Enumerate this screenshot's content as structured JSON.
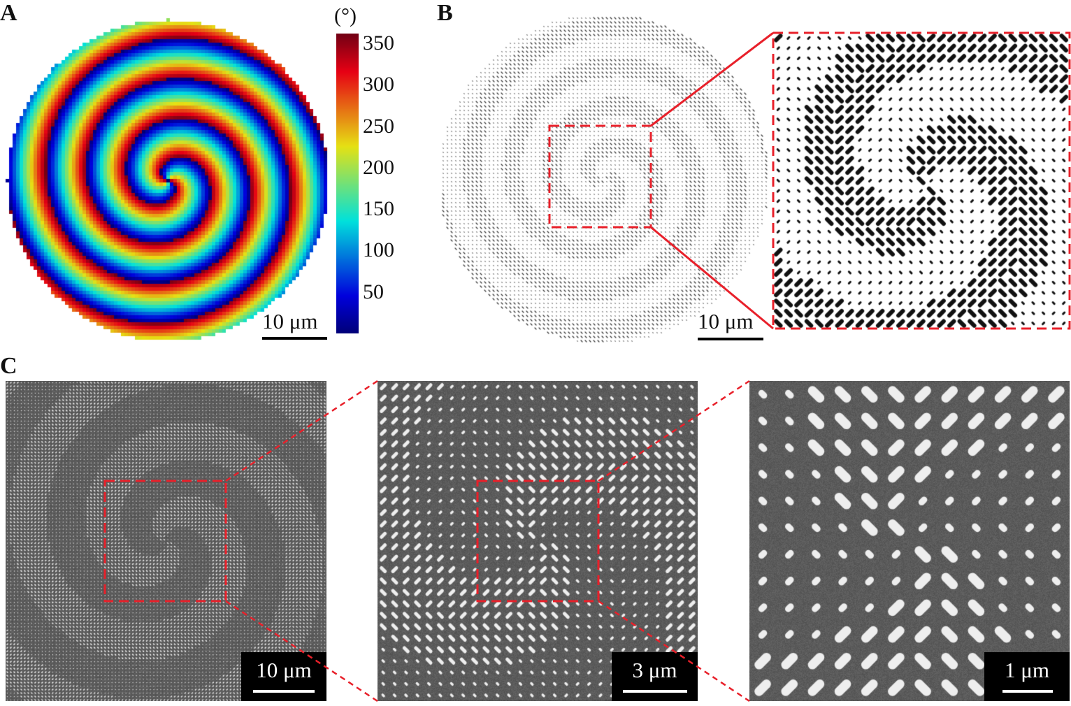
{
  "panels": {
    "a": {
      "label": "A",
      "colorbar_unit": "(°)",
      "colorbar_ticks": [
        "350",
        "300",
        "250",
        "200",
        "150",
        "100",
        "50"
      ],
      "scale_bar": "10 μm",
      "colormap": "jet"
    },
    "b": {
      "label": "B",
      "scale_bar": "10 μm"
    },
    "c": {
      "label": "C",
      "scale_bars": [
        "10 μm",
        "3 μm",
        "1 μm"
      ]
    }
  },
  "colors": {
    "highlight": "#e8202a",
    "sem_background": "#5a5a5a"
  }
}
